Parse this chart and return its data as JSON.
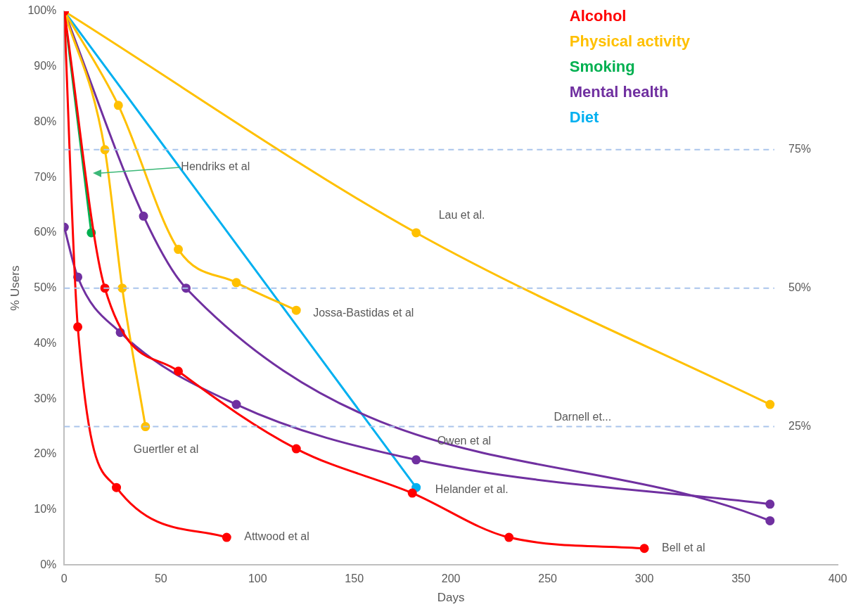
{
  "chart_data": {
    "type": "line",
    "xlabel": "Days",
    "ylabel": "% Users",
    "xlim": [
      0,
      400
    ],
    "xticks": [
      0,
      50,
      100,
      150,
      200,
      250,
      300,
      350,
      400
    ],
    "ylim": [
      0,
      100
    ],
    "yticks": [
      {
        "value": 0,
        "label": "0%"
      },
      {
        "value": 10,
        "label": "10%"
      },
      {
        "value": 20,
        "label": "20%"
      },
      {
        "value": 30,
        "label": "30%"
      },
      {
        "value": 40,
        "label": "40%"
      },
      {
        "value": 50,
        "label": "50%"
      },
      {
        "value": 60,
        "label": "60%"
      },
      {
        "value": 70,
        "label": "70%"
      },
      {
        "value": 80,
        "label": "80%"
      },
      {
        "value": 90,
        "label": "90%"
      },
      {
        "value": 100,
        "label": "100%"
      }
    ],
    "grid": false,
    "legend": "top right",
    "marker": "circle",
    "line_style": "solid",
    "series": [
      {
        "name": "Alcohol",
        "color": "#ff0000",
        "x": [
          0,
          7,
          27,
          84
        ],
        "values": [
          100,
          43,
          14,
          5
        ]
      },
      {
        "color": "#ff0000",
        "x": [
          0,
          21,
          59,
          120,
          180,
          230,
          300
        ],
        "values": [
          100,
          50,
          35,
          21,
          13,
          5,
          3
        ]
      },
      {
        "name": "Physical activity",
        "color": "#ffc000",
        "x": [
          0,
          182,
          365
        ],
        "values": [
          100,
          60,
          29
        ]
      },
      {
        "color": "#ffc000",
        "x": [
          0,
          28,
          59,
          89,
          120
        ],
        "values": [
          100,
          83,
          57,
          51,
          46
        ]
      },
      {
        "color": "#ffc000",
        "x": [
          0,
          21,
          30,
          42
        ],
        "values": [
          100,
          75,
          50,
          25
        ]
      },
      {
        "name": "Smoking",
        "color": "#00b050",
        "x": [
          0,
          14
        ],
        "values": [
          100,
          60
        ]
      },
      {
        "name": "Mental health",
        "color": "#7030a0",
        "x": [
          0,
          41,
          63,
          365
        ],
        "values": [
          100,
          63,
          50,
          8
        ]
      },
      {
        "color": "#7030a0",
        "x": [
          0,
          7,
          29,
          89,
          182,
          365
        ],
        "values": [
          61,
          52,
          42,
          29,
          19,
          11
        ]
      },
      {
        "name": "Diet",
        "color": "#00b0f0",
        "x": [
          0,
          182
        ],
        "values": [
          100,
          14
        ]
      }
    ],
    "ref_lines": [
      {
        "axis": "y",
        "value": 75,
        "label": "75%",
        "color": "#a9c4eb",
        "line_style": "dashed"
      },
      {
        "axis": "y",
        "value": 50,
        "label": "50%",
        "color": "#a9c4eb",
        "line_style": "dashed"
      },
      {
        "axis": "y",
        "value": 25,
        "label": "25%",
        "color": "#a9c4eb",
        "line_style": "dashed"
      }
    ],
    "annotations": [
      "Hendriks et al",
      {
        "text": "Lau et al.",
        "x": 182,
        "y": 60
      },
      {
        "text": "Jossa-Bastidas et al",
        "x": 120,
        "y": 46
      },
      {
        "text": "Guertler et al",
        "x": 42,
        "y": 25
      },
      "Darnell et...",
      {
        "text": "Owen et al",
        "x": 182,
        "y": 19
      },
      {
        "text": "Helander et al.",
        "x": 182,
        "y": 14
      },
      {
        "text": "Attwood et al",
        "x": 84,
        "y": 5
      },
      {
        "text": "Bell et al",
        "x": 300,
        "y": 3
      }
    ]
  }
}
